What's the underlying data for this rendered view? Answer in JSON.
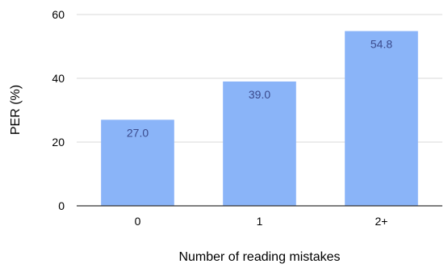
{
  "chart_data": {
    "type": "bar",
    "categories": [
      "0",
      "1",
      "2+"
    ],
    "values": [
      27.0,
      39.0,
      54.8
    ],
    "data_labels": [
      "27.0",
      "39.0",
      "54.8"
    ],
    "title": "",
    "xlabel": "Number of reading mistakes",
    "ylabel": "PER (%)",
    "ylim": [
      0,
      60
    ],
    "yticks": [
      0,
      20,
      40,
      60
    ],
    "ytick_labels": [
      "0",
      "20",
      "40",
      "60"
    ],
    "grid": "horizontal",
    "legend": "none",
    "colors": {
      "bar": "#8AB4F8",
      "data_label": "#3A4A8C",
      "grid": "#D9D9D9",
      "axis": "#333333"
    }
  }
}
